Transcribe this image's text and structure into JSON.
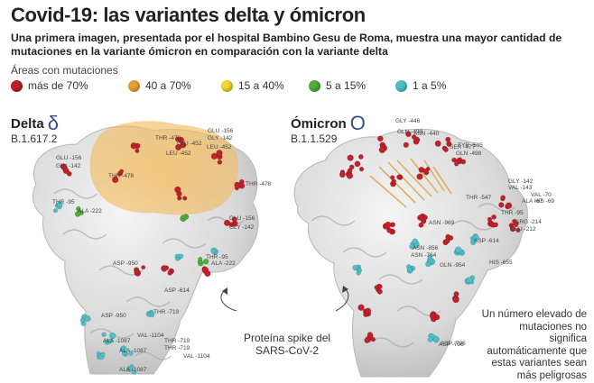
{
  "title": "Covid-19: las variantes delta y ómicron",
  "subtitle": "Una primera imagen, presentada por el hospital Bambino Gesu de Roma, muestra una mayor cantidad de mutaciones en la variante ómicron en comparación con la variante delta",
  "legend": {
    "label": "Áreas con mutaciones",
    "items": [
      {
        "label": "más de 70%",
        "color": "#c0202a"
      },
      {
        "label": "40 a 70%",
        "color": "#e8a23a"
      },
      {
        "label": "15 a 40%",
        "color": "#f2d52e"
      },
      {
        "label": "5 a 15%",
        "color": "#4fae3c"
      },
      {
        "label": "1 a 5%",
        "color": "#4fc0c8"
      }
    ]
  },
  "delta": {
    "name": "Delta",
    "symbol": "δ",
    "code": "B.1.617.2",
    "residues": [
      "THR -478",
      "LEU -452",
      "GLU -156",
      "GLY -142",
      "LEU -452",
      "THR -478",
      "GLU -156",
      "GLY -142",
      "LEU -452",
      "THR -478",
      "THR -95",
      "ALA -222",
      "GLU -156",
      "GLY -142",
      "ALA -222",
      "THR -95",
      "ASP -950",
      "ASP -614",
      "ASP -950",
      "THR -719",
      "THR -719",
      "VAL -1104",
      "ALA -1087",
      "THR -719",
      "ALA -1087",
      "VAL -1104",
      "ALA -1087"
    ]
  },
  "omicron": {
    "name": "Ómicron",
    "symbol": "O",
    "code": "B.1.1.529",
    "residues": [
      "GLY -446",
      "GLN -493",
      "ASN -440",
      "SER -477",
      "TYR -505",
      "GLN -498",
      "THR -547",
      "GLY -142",
      "VAL -143",
      "VAL -70",
      "ALA -67",
      "HIS -69",
      "LEU -212",
      "ARG -214",
      "THR -95",
      "ASP -614",
      "ASN -969",
      "ASN -856",
      "ASP -796",
      "GLN -954",
      "HIS -655",
      "ASN -764",
      "ASP -796"
    ]
  },
  "protein_label": "Proteína spike del SARS-CoV-2",
  "note": "Un número elevado de mutaciones no significa automáticamente que estas variantes sean más peligrosas"
}
